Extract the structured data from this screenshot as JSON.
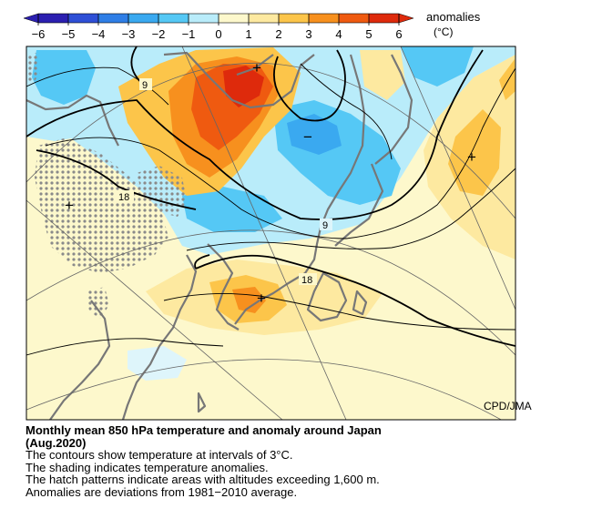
{
  "legend": {
    "title": "anomalies",
    "unit": "(°C)",
    "ticks": [
      "−6",
      "−5",
      "−4",
      "−3",
      "−2",
      "−1",
      "0",
      "1",
      "2",
      "3",
      "4",
      "5",
      "6"
    ],
    "colors": {
      "-6": "#2b1fb0",
      "-5": "#2e4fd6",
      "-4": "#2f7ee6",
      "-3": "#3aa9f0",
      "-2": "#55c8f5",
      "-1": "#b9ecfa",
      "0": "#def5fb",
      "1": "#fdf8cc",
      "2": "#fde9a0",
      "3": "#fcc54a",
      "4": "#f7901e",
      "5": "#ef5a10",
      "6": "#de2a0c"
    }
  },
  "map": {
    "contour_labels": [
      "9",
      "18",
      "9",
      "18"
    ],
    "markers": [
      "+",
      "+",
      "+",
      "+",
      "−"
    ],
    "credit": "CPD/JMA"
  },
  "caption": {
    "title": "Monthly mean 850 hPa temperature and anomaly around Japan",
    "period": "(Aug.2020)",
    "lines": [
      "The contours show temperature at intervals of 3°C.",
      "The shading indicates temperature anomalies.",
      "The hatch patterns indicate areas with altitudes exceeding 1,600 m.",
      "Anomalies are deviations from 1981−2010 average."
    ]
  }
}
